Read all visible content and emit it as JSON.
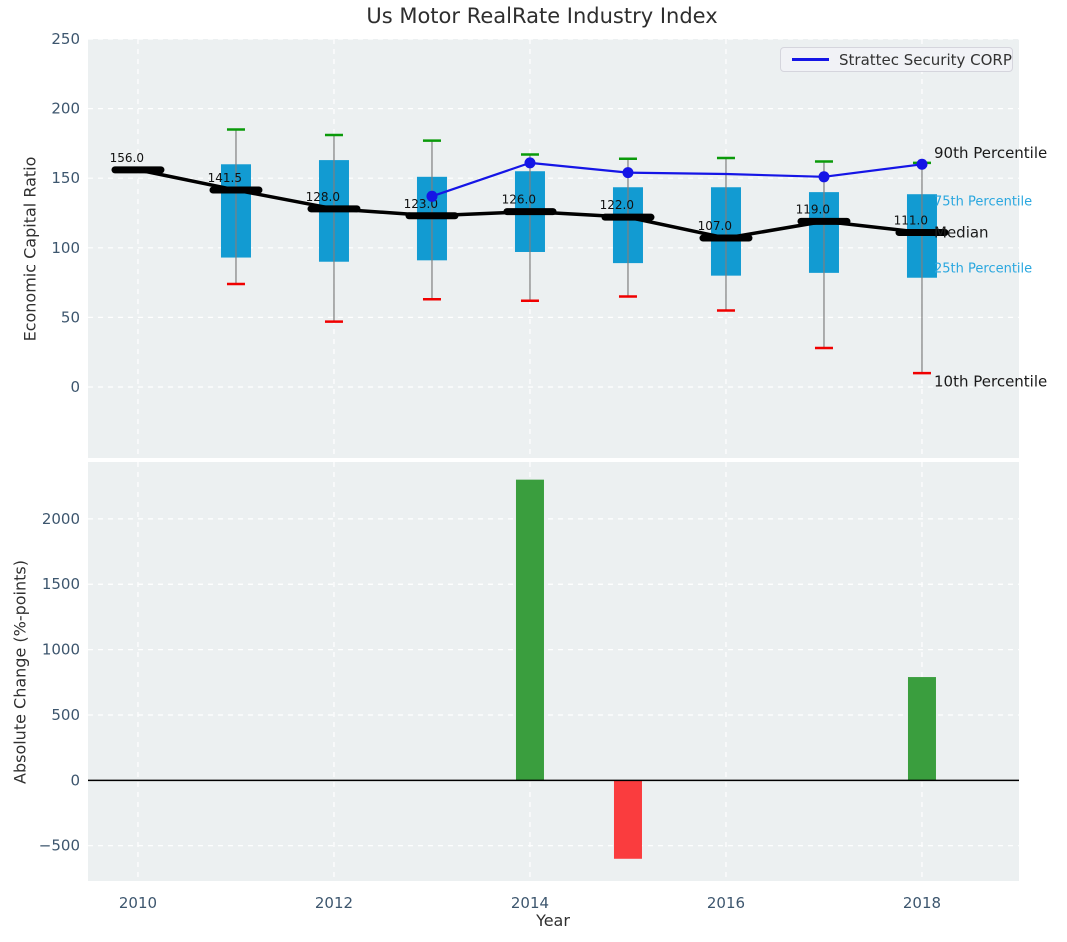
{
  "colors": {
    "axes_bg": "#ecf0f1",
    "grid": "#ffffff",
    "tick": "#3d566e",
    "text": "#2e2e2e",
    "box": "#129bd2",
    "whisker": "#7f7f7f",
    "cap_green": "#0a9a0a",
    "cap_red": "#f00000",
    "median": "#000000",
    "strattec": "#1515e6",
    "cyan_label": "#2aa7df",
    "bar_green": "#3a9e3e",
    "bar_red": "#fa3c3e",
    "zero_line": "#000000",
    "annotation_black": "#1a1a1a"
  },
  "chart_data": [
    {
      "type": "box",
      "title": "Us Motor RealRate Industry Index",
      "ylabel": "Economic Capital Ratio",
      "ylim": [
        -51,
        250
      ],
      "yticks": [
        0,
        50,
        100,
        150,
        200,
        250
      ],
      "grid_years": [
        2010,
        2012,
        2014,
        2016,
        2018
      ],
      "xlim": [
        2009.49,
        2018.99
      ],
      "legend": {
        "label": "Strattec Security CORP",
        "position": "upper right"
      },
      "years": [
        2010,
        2011,
        2012,
        2013,
        2014,
        2015,
        2016,
        2017,
        2018
      ],
      "median": [
        156,
        141.5,
        128,
        123,
        126,
        122,
        107,
        119,
        111
      ],
      "median_labels": [
        "156.0",
        "141.5",
        "128.0",
        "123.0",
        "126.0",
        "122.0",
        "107.0",
        "119.0",
        "111.0"
      ],
      "p75": [
        null,
        160,
        163,
        151,
        155,
        143.5,
        143.5,
        140,
        138.5
      ],
      "p25": [
        null,
        93,
        90,
        91,
        97,
        89,
        80,
        82,
        78.5
      ],
      "p90": [
        null,
        185,
        181,
        177,
        167,
        164,
        164.5,
        162,
        161
      ],
      "p10": [
        null,
        74,
        47,
        63,
        62,
        65,
        55,
        28,
        10
      ],
      "series": [
        {
          "name": "Strattec Security CORP",
          "x": [
            2013,
            2014,
            2015,
            2016,
            2017,
            2018
          ],
          "y": [
            137,
            161,
            154,
            153,
            151,
            160
          ],
          "markers": [
            true,
            true,
            true,
            false,
            true,
            true
          ]
        }
      ],
      "right_labels": [
        {
          "text": "90th Percentile",
          "value": 168,
          "style": "black",
          "size": 15
        },
        {
          "text": "75th Percentile",
          "value": 134,
          "style": "cyan",
          "size": 13
        },
        {
          "text": "Median",
          "value": 111,
          "style": "black",
          "size": 15
        },
        {
          "text": "25th Percentile",
          "value": 86,
          "style": "cyan",
          "size": 13
        },
        {
          "text": "10th Percentile",
          "value": 4,
          "style": "black",
          "size": 15
        }
      ]
    },
    {
      "type": "bar",
      "ylabel": "Absolute Change (%-points)",
      "xlabel": "Year",
      "ylim": [
        -770,
        2435
      ],
      "yticks": [
        -500,
        0,
        500,
        1000,
        1500,
        2000
      ],
      "xticks": [
        2010,
        2012,
        2014,
        2016,
        2018
      ],
      "bars": [
        {
          "year": 2014,
          "value": 2300,
          "color": "green"
        },
        {
          "year": 2015,
          "value": -600,
          "color": "red"
        },
        {
          "year": 2018,
          "value": 790,
          "color": "green"
        }
      ]
    }
  ]
}
